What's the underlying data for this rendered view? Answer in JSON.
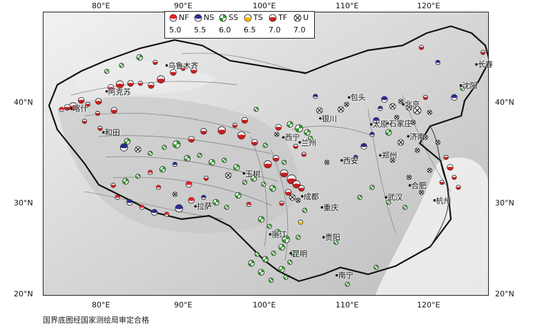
{
  "map": {
    "lon_ticks": [
      "80°E",
      "90°E",
      "100°E",
      "110°E",
      "120°E"
    ],
    "lat_ticks": [
      "40°N",
      "30°N",
      "20°N"
    ],
    "cities": [
      {
        "name": "乌鲁木齐",
        "lon": 87.6,
        "lat": 43.8
      },
      {
        "name": "阿克苏",
        "lon": 80.3,
        "lat": 41.2
      },
      {
        "name": "喀什",
        "lon": 76.0,
        "lat": 39.5
      },
      {
        "name": "和田",
        "lon": 79.9,
        "lat": 37.1
      },
      {
        "name": "包头",
        "lon": 109.8,
        "lat": 40.6
      },
      {
        "name": "银川",
        "lon": 106.3,
        "lat": 38.5
      },
      {
        "name": "西宁",
        "lon": 101.8,
        "lat": 36.6
      },
      {
        "name": "兰州",
        "lon": 103.8,
        "lat": 36.1
      },
      {
        "name": "玉树",
        "lon": 97.0,
        "lat": 33.0
      },
      {
        "name": "西安",
        "lon": 108.9,
        "lat": 34.3
      },
      {
        "name": "太原",
        "lon": 112.5,
        "lat": 37.9
      },
      {
        "name": "北京",
        "lon": 116.4,
        "lat": 39.9
      },
      {
        "name": "石家庄",
        "lon": 114.5,
        "lat": 38.0
      },
      {
        "name": "济南",
        "lon": 117.0,
        "lat": 36.7
      },
      {
        "name": "郑州",
        "lon": 113.6,
        "lat": 34.8
      },
      {
        "name": "武汉",
        "lon": 114.3,
        "lat": 30.6
      },
      {
        "name": "合肥",
        "lon": 117.2,
        "lat": 31.8
      },
      {
        "name": "杭州",
        "lon": 120.2,
        "lat": 30.3
      },
      {
        "name": "成都",
        "lon": 104.1,
        "lat": 30.7
      },
      {
        "name": "重庆",
        "lon": 106.5,
        "lat": 29.6
      },
      {
        "name": "贵阳",
        "lon": 106.7,
        "lat": 26.6
      },
      {
        "name": "昆明",
        "lon": 102.7,
        "lat": 25.0
      },
      {
        "name": "南宁",
        "lon": 108.3,
        "lat": 22.8
      },
      {
        "name": "拉萨",
        "lon": 91.1,
        "lat": 29.7
      },
      {
        "name": "长春",
        "lon": 125.3,
        "lat": 43.9
      },
      {
        "name": "沈阳",
        "lon": 123.4,
        "lat": 41.8
      },
      {
        "name": "丽江",
        "lon": 100.2,
        "lat": 26.9
      }
    ]
  },
  "legend": {
    "items": [
      {
        "code": "NF",
        "magnitude": "5.0",
        "color": "#e8202a",
        "light": "#ffffff"
      },
      {
        "code": "NS",
        "magnitude": "5.5",
        "color": "#2b2b8f",
        "light": "#ffffff"
      },
      {
        "code": "SS",
        "magnitude": "6.0",
        "color": "#2e9b2e",
        "light": "#ffffff"
      },
      {
        "code": "TS",
        "magnitude": "6.5",
        "color": "#f5b400",
        "light": "#ffffff"
      },
      {
        "code": "TF",
        "magnitude": "7.0",
        "color": "#c81e1e",
        "light": "#ffffff"
      },
      {
        "code": "U",
        "magnitude": "7.0",
        "color": "#111111",
        "light": "#ffffff"
      }
    ]
  },
  "footer": {
    "approval_note": "国界底图经国家测绘局审定合格"
  },
  "events": [
    {
      "type": "TF",
      "lon": 76.2,
      "lat": 39.7,
      "mag": 6.0
    },
    {
      "type": "TF",
      "lon": 75.5,
      "lat": 39.6,
      "mag": 5.5
    },
    {
      "type": "NF",
      "lon": 74.8,
      "lat": 39.4,
      "mag": 5.0
    },
    {
      "type": "TF",
      "lon": 77.2,
      "lat": 40.3,
      "mag": 5.5
    },
    {
      "type": "TF",
      "lon": 78.0,
      "lat": 39.9,
      "mag": 5.0
    },
    {
      "type": "TF",
      "lon": 79.3,
      "lat": 40.2,
      "mag": 5.5
    },
    {
      "type": "TF",
      "lon": 80.8,
      "lat": 41.6,
      "mag": 5.5
    },
    {
      "type": "TF",
      "lon": 81.9,
      "lat": 41.9,
      "mag": 6.0
    },
    {
      "type": "TF",
      "lon": 83.2,
      "lat": 42.0,
      "mag": 5.5
    },
    {
      "type": "TF",
      "lon": 84.4,
      "lat": 42.0,
      "mag": 5.0
    },
    {
      "type": "TF",
      "lon": 85.7,
      "lat": 41.8,
      "mag": 5.5
    },
    {
      "type": "TF",
      "lon": 86.9,
      "lat": 42.4,
      "mag": 6.0
    },
    {
      "type": "TF",
      "lon": 88.4,
      "lat": 43.1,
      "mag": 5.5
    },
    {
      "type": "TF",
      "lon": 89.6,
      "lat": 43.5,
      "mag": 5.0
    },
    {
      "type": "TF",
      "lon": 90.9,
      "lat": 43.3,
      "mag": 5.5
    },
    {
      "type": "TF",
      "lon": 86.2,
      "lat": 44.1,
      "mag": 5.0
    },
    {
      "type": "SS",
      "lon": 82.1,
      "lat": 43.8,
      "mag": 5.0
    },
    {
      "type": "SS",
      "lon": 84.3,
      "lat": 44.6,
      "mag": 5.5
    },
    {
      "type": "SS",
      "lon": 80.3,
      "lat": 43.2,
      "mag": 5.0
    },
    {
      "type": "TF",
      "lon": 79.2,
      "lat": 39.0,
      "mag": 5.0
    },
    {
      "type": "TF",
      "lon": 81.2,
      "lat": 39.3,
      "mag": 5.5
    },
    {
      "type": "TF",
      "lon": 77.6,
      "lat": 38.2,
      "mag": 5.0
    },
    {
      "type": "TF",
      "lon": 79.5,
      "lat": 37.5,
      "mag": 5.0
    },
    {
      "type": "SS",
      "lon": 82.8,
      "lat": 36.2,
      "mag": 5.5
    },
    {
      "type": "NS",
      "lon": 82.4,
      "lat": 35.6,
      "mag": 6.0
    },
    {
      "type": "U",
      "lon": 84.1,
      "lat": 35.4,
      "mag": 5.5
    },
    {
      "type": "SS",
      "lon": 85.6,
      "lat": 35.0,
      "mag": 5.0
    },
    {
      "type": "SS",
      "lon": 87.3,
      "lat": 35.6,
      "mag": 5.0
    },
    {
      "type": "SS",
      "lon": 88.8,
      "lat": 35.9,
      "mag": 6.0
    },
    {
      "type": "TF",
      "lon": 90.6,
      "lat": 36.4,
      "mag": 5.5
    },
    {
      "type": "TF",
      "lon": 92.1,
      "lat": 37.2,
      "mag": 5.5
    },
    {
      "type": "TF",
      "lon": 94.3,
      "lat": 37.3,
      "mag": 6.0
    },
    {
      "type": "TF",
      "lon": 95.9,
      "lat": 37.8,
      "mag": 5.0
    },
    {
      "type": "TF",
      "lon": 97.1,
      "lat": 38.3,
      "mag": 5.5
    },
    {
      "type": "SS",
      "lon": 98.5,
      "lat": 39.4,
      "mag": 5.0
    },
    {
      "type": "TF",
      "lon": 96.7,
      "lat": 36.8,
      "mag": 6.0
    },
    {
      "type": "TF",
      "lon": 98.3,
      "lat": 36.1,
      "mag": 5.5
    },
    {
      "type": "SS",
      "lon": 99.6,
      "lat": 35.8,
      "mag": 5.0
    },
    {
      "type": "TF",
      "lon": 101.2,
      "lat": 37.6,
      "mag": 5.5
    },
    {
      "type": "U",
      "lon": 101.0,
      "lat": 36.9,
      "mag": 5.0
    },
    {
      "type": "SS",
      "lon": 102.6,
      "lat": 37.9,
      "mag": 5.5
    },
    {
      "type": "SS",
      "lon": 103.7,
      "lat": 37.5,
      "mag": 6.0
    },
    {
      "type": "SS",
      "lon": 104.7,
      "lat": 37.1,
      "mag": 5.5
    },
    {
      "type": "TF",
      "lon": 103.3,
      "lat": 35.7,
      "mag": 5.0
    },
    {
      "type": "TF",
      "lon": 104.3,
      "lat": 34.9,
      "mag": 5.0
    },
    {
      "type": "SS",
      "lon": 105.1,
      "lat": 36.5,
      "mag": 5.0
    },
    {
      "type": "U",
      "lon": 106.2,
      "lat": 39.3,
      "mag": 5.5
    },
    {
      "type": "NS",
      "lon": 105.7,
      "lat": 40.7,
      "mag": 5.0
    },
    {
      "type": "U",
      "lon": 108.8,
      "lat": 39.4,
      "mag": 5.5
    },
    {
      "type": "U",
      "lon": 109.5,
      "lat": 39.9,
      "mag": 5.0
    },
    {
      "type": "TF",
      "lon": 101.9,
      "lat": 33.0,
      "mag": 6.0
    },
    {
      "type": "TF",
      "lon": 102.8,
      "lat": 32.4,
      "mag": 6.5
    },
    {
      "type": "TF",
      "lon": 103.4,
      "lat": 31.9,
      "mag": 6.0
    },
    {
      "type": "TF",
      "lon": 104.0,
      "lat": 31.5,
      "mag": 5.5
    },
    {
      "type": "TF",
      "lon": 102.4,
      "lat": 31.1,
      "mag": 5.5
    },
    {
      "type": "U",
      "lon": 102.9,
      "lat": 30.6,
      "mag": 5.5
    },
    {
      "type": "TF",
      "lon": 101.6,
      "lat": 30.0,
      "mag": 5.0
    },
    {
      "type": "U",
      "lon": 103.6,
      "lat": 30.3,
      "mag": 5.0
    },
    {
      "type": "SS",
      "lon": 100.5,
      "lat": 31.5,
      "mag": 5.5
    },
    {
      "type": "SS",
      "lon": 99.4,
      "lat": 31.9,
      "mag": 5.0
    },
    {
      "type": "SS",
      "lon": 98.2,
      "lat": 32.5,
      "mag": 5.5
    },
    {
      "type": "SS",
      "lon": 97.1,
      "lat": 32.1,
      "mag": 5.0
    },
    {
      "type": "SS",
      "lon": 96.1,
      "lat": 33.6,
      "mag": 5.5
    },
    {
      "type": "SS",
      "lon": 94.6,
      "lat": 34.3,
      "mag": 5.0
    },
    {
      "type": "SS",
      "lon": 93.1,
      "lat": 34.1,
      "mag": 5.5
    },
    {
      "type": "SS",
      "lon": 91.6,
      "lat": 34.8,
      "mag": 5.0
    },
    {
      "type": "SS",
      "lon": 90.1,
      "lat": 34.5,
      "mag": 5.5
    },
    {
      "type": "NS",
      "lon": 88.6,
      "lat": 33.9,
      "mag": 5.0
    },
    {
      "type": "SS",
      "lon": 87.1,
      "lat": 33.4,
      "mag": 5.5
    },
    {
      "type": "NF",
      "lon": 85.6,
      "lat": 33.1,
      "mag": 5.0
    },
    {
      "type": "SS",
      "lon": 84.1,
      "lat": 32.7,
      "mag": 5.0
    },
    {
      "type": "SS",
      "lon": 82.6,
      "lat": 32.2,
      "mag": 5.5
    },
    {
      "type": "TF",
      "lon": 81.1,
      "lat": 31.8,
      "mag": 5.0
    },
    {
      "type": "NF",
      "lon": 81.6,
      "lat": 30.6,
      "mag": 5.0
    },
    {
      "type": "NS",
      "lon": 83.1,
      "lat": 30.1,
      "mag": 5.5
    },
    {
      "type": "NF",
      "lon": 84.6,
      "lat": 29.6,
      "mag": 5.0
    },
    {
      "type": "NS",
      "lon": 86.1,
      "lat": 29.1,
      "mag": 5.5
    },
    {
      "type": "NF",
      "lon": 87.6,
      "lat": 28.9,
      "mag": 5.0
    },
    {
      "type": "NS",
      "lon": 89.1,
      "lat": 29.5,
      "mag": 6.0
    },
    {
      "type": "NF",
      "lon": 90.6,
      "lat": 30.3,
      "mag": 5.5
    },
    {
      "type": "NS",
      "lon": 92.1,
      "lat": 30.6,
      "mag": 5.0
    },
    {
      "type": "SS",
      "lon": 93.6,
      "lat": 30.1,
      "mag": 5.5
    },
    {
      "type": "SS",
      "lon": 94.9,
      "lat": 29.6,
      "mag": 5.0
    },
    {
      "type": "SS",
      "lon": 96.3,
      "lat": 30.8,
      "mag": 5.5
    },
    {
      "type": "NF",
      "lon": 97.6,
      "lat": 29.9,
      "mag": 5.0
    },
    {
      "type": "NF",
      "lon": 90.3,
      "lat": 31.9,
      "mag": 5.5
    },
    {
      "type": "NF",
      "lon": 86.6,
      "lat": 31.6,
      "mag": 5.0
    },
    {
      "type": "U",
      "lon": 88.6,
      "lat": 30.9,
      "mag": 5.0
    },
    {
      "type": "U",
      "lon": 95.1,
      "lat": 32.8,
      "mag": 5.5
    },
    {
      "type": "TF",
      "lon": 92.4,
      "lat": 32.5,
      "mag": 5.0
    },
    {
      "type": "SS",
      "lon": 99.1,
      "lat": 28.4,
      "mag": 5.5
    },
    {
      "type": "SS",
      "lon": 100.1,
      "lat": 27.7,
      "mag": 5.0
    },
    {
      "type": "SS",
      "lon": 101.1,
      "lat": 27.1,
      "mag": 5.5
    },
    {
      "type": "SS",
      "lon": 102.1,
      "lat": 26.4,
      "mag": 6.0
    },
    {
      "type": "SS",
      "lon": 101.6,
      "lat": 25.6,
      "mag": 5.5
    },
    {
      "type": "SS",
      "lon": 100.6,
      "lat": 25.0,
      "mag": 5.0
    },
    {
      "type": "SS",
      "lon": 99.6,
      "lat": 24.4,
      "mag": 5.5
    },
    {
      "type": "SS",
      "lon": 98.6,
      "lat": 24.9,
      "mag": 5.0
    },
    {
      "type": "SS",
      "lon": 97.9,
      "lat": 24.0,
      "mag": 5.5
    },
    {
      "type": "SS",
      "lon": 102.6,
      "lat": 24.1,
      "mag": 5.0
    },
    {
      "type": "SS",
      "lon": 103.1,
      "lat": 25.0,
      "mag": 5.5
    },
    {
      "type": "SS",
      "lon": 103.6,
      "lat": 26.6,
      "mag": 5.0
    },
    {
      "type": "SS",
      "lon": 99.1,
      "lat": 23.1,
      "mag": 5.5
    },
    {
      "type": "SS",
      "lon": 100.3,
      "lat": 22.3,
      "mag": 5.0
    },
    {
      "type": "SS",
      "lon": 101.6,
      "lat": 23.4,
      "mag": 5.5
    },
    {
      "type": "SS",
      "lon": 102.1,
      "lat": 22.6,
      "mag": 5.0
    },
    {
      "type": "TS",
      "lon": 103.9,
      "lat": 28.1,
      "mag": 5.0
    },
    {
      "type": "SS",
      "lon": 104.4,
      "lat": 29.3,
      "mag": 5.0
    },
    {
      "type": "SS",
      "lon": 108.2,
      "lat": 26.1,
      "mag": 5.0
    },
    {
      "type": "SS",
      "lon": 109.6,
      "lat": 21.9,
      "mag": 5.0
    },
    {
      "type": "SS",
      "lon": 108.6,
      "lat": 20.6,
      "mag": 5.0
    },
    {
      "type": "U",
      "lon": 107.1,
      "lat": 34.1,
      "mag": 5.0
    },
    {
      "type": "NS",
      "lon": 110.6,
      "lat": 34.6,
      "mag": 5.0
    },
    {
      "type": "NS",
      "lon": 111.6,
      "lat": 35.7,
      "mag": 5.5
    },
    {
      "type": "NS",
      "lon": 112.6,
      "lat": 36.9,
      "mag": 5.0
    },
    {
      "type": "NS",
      "lon": 113.1,
      "lat": 38.3,
      "mag": 5.5
    },
    {
      "type": "NS",
      "lon": 113.6,
      "lat": 39.5,
      "mag": 5.0
    },
    {
      "type": "NS",
      "lon": 114.1,
      "lat": 40.4,
      "mag": 5.5
    },
    {
      "type": "U",
      "lon": 115.1,
      "lat": 39.7,
      "mag": 5.5
    },
    {
      "type": "U",
      "lon": 116.1,
      "lat": 40.2,
      "mag": 5.0
    },
    {
      "type": "U",
      "lon": 117.1,
      "lat": 39.6,
      "mag": 5.5
    },
    {
      "type": "U",
      "lon": 118.1,
      "lat": 39.3,
      "mag": 6.0
    },
    {
      "type": "U",
      "lon": 115.6,
      "lat": 38.6,
      "mag": 5.0
    },
    {
      "type": "U",
      "lon": 117.6,
      "lat": 38.1,
      "mag": 5.0
    },
    {
      "type": "SS",
      "lon": 114.6,
      "lat": 37.1,
      "mag": 5.5
    },
    {
      "type": "U",
      "lon": 116.1,
      "lat": 36.1,
      "mag": 5.5
    },
    {
      "type": "U",
      "lon": 118.1,
      "lat": 35.3,
      "mag": 5.0
    },
    {
      "type": "U",
      "lon": 115.1,
      "lat": 34.3,
      "mag": 5.0
    },
    {
      "type": "U",
      "lon": 119.1,
      "lat": 36.6,
      "mag": 5.0
    },
    {
      "type": "U",
      "lon": 120.6,
      "lat": 36.1,
      "mag": 5.0
    },
    {
      "type": "U",
      "lon": 119.6,
      "lat": 39.1,
      "mag": 5.0
    },
    {
      "type": "TF",
      "lon": 121.1,
      "lat": 32.1,
      "mag": 5.0
    },
    {
      "type": "TF",
      "lon": 122.1,
      "lat": 33.6,
      "mag": 5.5
    },
    {
      "type": "TF",
      "lon": 122.6,
      "lat": 32.6,
      "mag": 5.0
    },
    {
      "type": "TF",
      "lon": 121.6,
      "lat": 34.6,
      "mag": 5.0
    },
    {
      "type": "TF",
      "lon": 123.1,
      "lat": 31.6,
      "mag": 5.0
    },
    {
      "type": "NS",
      "lon": 122.6,
      "lat": 40.6,
      "mag": 5.5
    },
    {
      "type": "TF",
      "lon": 119.1,
      "lat": 40.6,
      "mag": 5.0
    },
    {
      "type": "TF",
      "lon": 118.6,
      "lat": 45.6,
      "mag": 5.0
    },
    {
      "type": "NS",
      "lon": 120.6,
      "lat": 44.1,
      "mag": 5.0
    },
    {
      "type": "TF",
      "lon": 126.1,
      "lat": 45.1,
      "mag": 5.0
    },
    {
      "type": "SS",
      "lon": 123.6,
      "lat": 41.5,
      "mag": 5.0
    },
    {
      "type": "SS",
      "lon": 112.6,
      "lat": 31.6,
      "mag": 5.0
    },
    {
      "type": "SS",
      "lon": 111.1,
      "lat": 30.6,
      "mag": 5.0
    },
    {
      "type": "SS",
      "lon": 114.6,
      "lat": 30.1,
      "mag": 5.0
    },
    {
      "type": "U",
      "lon": 118.6,
      "lat": 31.1,
      "mag": 5.0
    },
    {
      "type": "SS",
      "lon": 116.6,
      "lat": 29.6,
      "mag": 5.0
    },
    {
      "type": "U",
      "lon": 117.1,
      "lat": 32.6,
      "mag": 5.0
    },
    {
      "type": "U",
      "lon": 119.6,
      "lat": 33.3,
      "mag": 5.0
    },
    {
      "type": "SS",
      "lon": 113.1,
      "lat": 23.6,
      "mag": 5.0
    },
    {
      "type": "TF",
      "lon": 99.9,
      "lat": 33.9,
      "mag": 6.0
    },
    {
      "type": "TF",
      "lon": 100.9,
      "lat": 34.5,
      "mag": 5.5
    },
    {
      "type": "SS",
      "lon": 101.9,
      "lat": 34.1,
      "mag": 5.0
    }
  ]
}
